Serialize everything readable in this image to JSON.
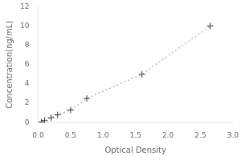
{
  "chart_data": {
    "type": "line",
    "x": [
      0.05,
      0.1,
      0.2,
      0.3,
      0.5,
      0.75,
      1.6,
      2.65
    ],
    "series": [
      {
        "type": "line",
        "line_style": "dotted",
        "color": "#888888",
        "values": [
          0.05,
          0.2,
          0.5,
          0.8,
          1.3,
          2.5,
          5.0,
          10.0
        ]
      },
      {
        "type": "scatter",
        "marker": "+",
        "color": "#333333",
        "values": [
          0.05,
          0.2,
          0.5,
          0.8,
          1.3,
          2.5,
          5.0,
          10.0
        ]
      }
    ],
    "xlabel": "Optical Density",
    "ylabel": "Concentration(ng/mL)",
    "xlim": [
      0,
      3
    ],
    "ylim": [
      0,
      12
    ],
    "xticks": [
      {
        "value": 0,
        "label": "0.0"
      },
      {
        "value": 0.5,
        "label": "0.5"
      },
      {
        "value": 1,
        "label": "1.0"
      },
      {
        "value": 1.5,
        "label": "1.5"
      },
      {
        "value": 2,
        "label": "2.0"
      },
      {
        "value": 2.5,
        "label": "2.5"
      },
      {
        "value": 3,
        "label": "3.0"
      }
    ],
    "yticks": [
      0,
      2,
      4,
      6,
      8,
      10,
      12
    ],
    "grid": false
  }
}
